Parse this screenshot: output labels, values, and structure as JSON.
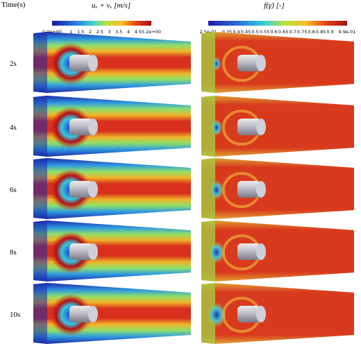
{
  "header": {
    "time_label": "Time(s)",
    "colorbars": [
      {
        "title": "uₓ + vₓ [m/s]",
        "ticks": [
          "0.0e+00",
          "1",
          "1.5",
          "2",
          "2.5",
          "3",
          "3.5",
          "4",
          "4.5",
          "5.2e+00"
        ]
      },
      {
        "title": "f(γ̇) [-]",
        "ticks": [
          "2.5e-01",
          "0.35",
          "0.4",
          "0.45",
          "0.5",
          "0.55",
          "0.6",
          "0.65",
          "0.7",
          "0.75",
          "0.8",
          "0.85",
          "0.9",
          "9.9e-01"
        ]
      }
    ]
  },
  "rows": [
    {
      "time": "2s"
    },
    {
      "time": "4s"
    },
    {
      "time": "6s"
    },
    {
      "time": "8s"
    },
    {
      "time": "10s"
    }
  ]
}
